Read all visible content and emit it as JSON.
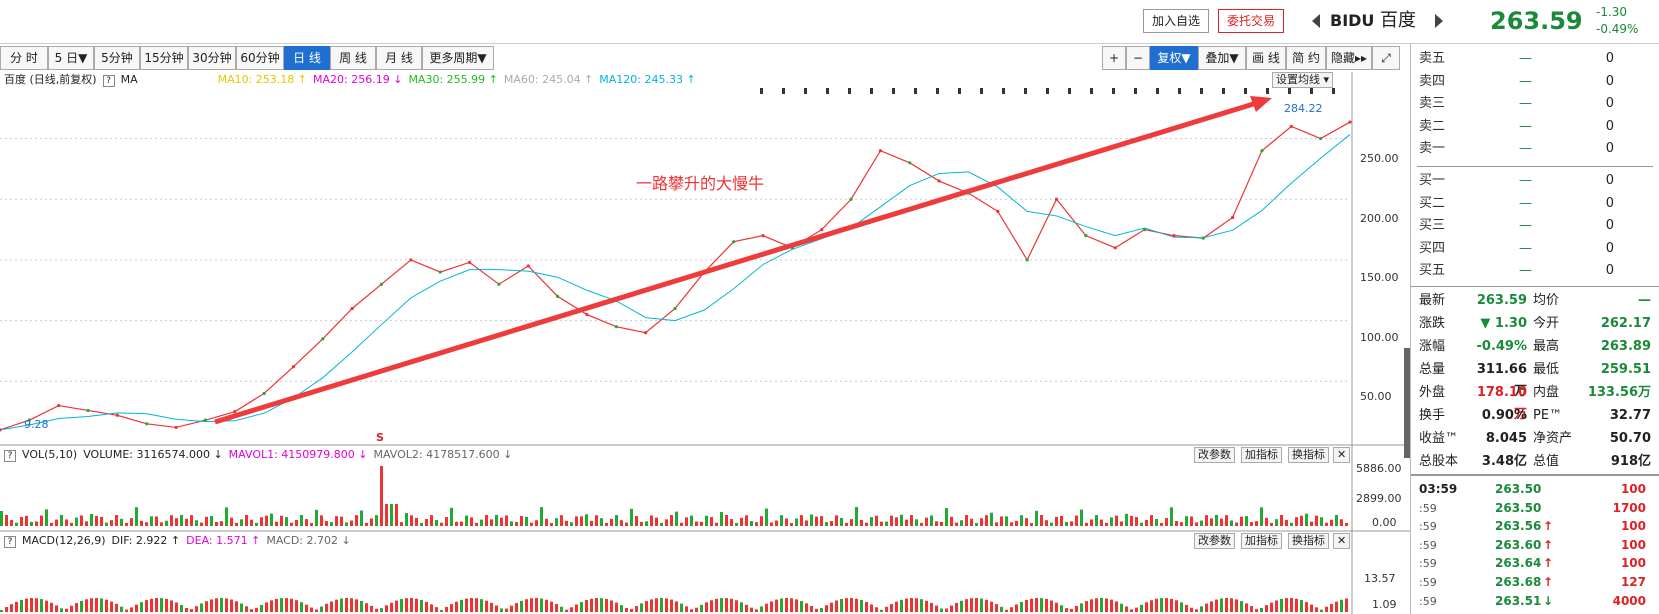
{
  "header": {
    "add_watch": "加入自选",
    "trade": "委托交易",
    "symbol": "BIDU",
    "name": "百度",
    "price": "263.59",
    "change": "-1.30",
    "change_pct": "-0.49%"
  },
  "period_tabs": [
    "分 时",
    "5 日▼",
    "5分钟",
    "15分钟",
    "30分钟",
    "60分钟",
    "日 线",
    "周 线",
    "月 线",
    "更多周期▼"
  ],
  "active_tab": "日 线",
  "tools": {
    "plus": "+",
    "minus": "−",
    "adjust": "复权▼",
    "overlay": "叠加▼",
    "draw": "画 线",
    "brief": "简 约",
    "hide": "隐藏▸▸",
    "expand": "⤢"
  },
  "main_chart": {
    "title": "百度 (日线,前复权)",
    "help": "?",
    "ma_label": "MA",
    "ma": [
      {
        "label": "MA10: 253.18 ↑",
        "color": "#e6c800"
      },
      {
        "label": "MA20: 256.19 ↓",
        "color": "#e000e0"
      },
      {
        "label": "MA30: 255.99 ↑",
        "color": "#22bb22"
      },
      {
        "label": "MA60: 245.04 ↑",
        "color": "#aaaaaa"
      },
      {
        "label": "MA120: 245.33 ↑",
        "color": "#00b5d8"
      }
    ],
    "settings_button": "设置均线 ▾",
    "max_label": "284.22",
    "min_label": "9.28",
    "annotation": "一路攀升的大慢牛",
    "s_marker": "S",
    "y_ticks": [
      "250.00",
      "200.00",
      "150.00",
      "100.00",
      "50.00"
    ]
  },
  "volume_panel": {
    "help": "?",
    "legend": [
      {
        "label": "VOL(5,10)",
        "color": "#222222"
      },
      {
        "label": "VOLUME: 3116574.000 ↓",
        "color": "#222222"
      },
      {
        "label": "MAVOL1: 4150979.800 ↓",
        "color": "#e000e0"
      },
      {
        "label": "MAVOL2: 4178517.600 ↓",
        "color": "#666666"
      }
    ],
    "y_ticks": [
      "5886.00",
      "2899.00",
      "0.00"
    ]
  },
  "macd_panel": {
    "help": "?",
    "legend": [
      {
        "label": "MACD(12,26,9)",
        "color": "#222222"
      },
      {
        "label": "DIF: 2.922 ↑",
        "color": "#222222"
      },
      {
        "label": "DEA: 1.571 ↑",
        "color": "#e000e0"
      },
      {
        "label": "MACD: 2.702 ↓",
        "color": "#666666"
      }
    ],
    "y_ticks": [
      "13.57",
      "1.09"
    ]
  },
  "panel_buttons": {
    "params": "改参数",
    "add": "加指标",
    "switch": "换指标",
    "close": "✕"
  },
  "order_book": {
    "asks": [
      {
        "label": "卖五",
        "price": "—",
        "vol": "0"
      },
      {
        "label": "卖四",
        "price": "—",
        "vol": "0"
      },
      {
        "label": "卖三",
        "price": "—",
        "vol": "0"
      },
      {
        "label": "卖二",
        "price": "—",
        "vol": "0"
      },
      {
        "label": "卖一",
        "price": "—",
        "vol": "0"
      }
    ],
    "bids": [
      {
        "label": "买一",
        "price": "—",
        "vol": "0"
      },
      {
        "label": "买二",
        "price": "—",
        "vol": "0"
      },
      {
        "label": "买三",
        "price": "—",
        "vol": "0"
      },
      {
        "label": "买四",
        "price": "—",
        "vol": "0"
      },
      {
        "label": "买五",
        "price": "—",
        "vol": "0"
      }
    ]
  },
  "quote_stats": [
    {
      "l1": "最新",
      "v1": "263.59",
      "c1": "green",
      "l2": "均价",
      "v2": "—",
      "c2": "green"
    },
    {
      "l1": "涨跌",
      "v1": "▼ 1.30",
      "c1": "green",
      "l2": "今开",
      "v2": "262.17",
      "c2": "green"
    },
    {
      "l1": "涨幅",
      "v1": "-0.49%",
      "c1": "green",
      "l2": "最高",
      "v2": "263.89",
      "c2": "green"
    },
    {
      "l1": "总量",
      "v1": "311.66万",
      "c1": "black",
      "l2": "最低",
      "v2": "259.51",
      "c2": "green"
    },
    {
      "l1": "外盘",
      "v1": "178.10万",
      "c1": "red",
      "l2": "内盘",
      "v2": "133.56万",
      "c2": "green"
    },
    {
      "l1": "换手",
      "v1": "0.90%",
      "c1": "black",
      "l2": "PE™",
      "v2": "32.77",
      "c2": "black"
    },
    {
      "l1": "收益™",
      "v1": "8.045",
      "c1": "black",
      "l2": "净资产",
      "v2": "50.70",
      "c2": "black"
    },
    {
      "l1": "总股本",
      "v1": "3.48亿",
      "c1": "black",
      "l2": "总值",
      "v2": "918亿",
      "c2": "black"
    }
  ],
  "ticks": [
    {
      "time": "03:59",
      "price": "263.50",
      "arrow": "",
      "vol": "100"
    },
    {
      "time": ":59",
      "price": "263.50",
      "arrow": "",
      "vol": "1700"
    },
    {
      "time": ":59",
      "price": "263.56",
      "arrow": "↑",
      "vol": "100"
    },
    {
      "time": ":59",
      "price": "263.60",
      "arrow": "↑",
      "vol": "100"
    },
    {
      "time": ":59",
      "price": "263.64",
      "arrow": "↑",
      "vol": "100"
    },
    {
      "time": ":59",
      "price": "263.68",
      "arrow": "↑",
      "vol": "127"
    },
    {
      "time": ":59",
      "price": "263.51",
      "arrow": "↓",
      "vol": "4000"
    }
  ],
  "chart_data": {
    "type": "line",
    "series": [
      {
        "name": "close",
        "values": [
          10,
          18,
          30,
          26,
          22,
          15,
          12,
          18,
          25,
          40,
          62,
          85,
          110,
          130,
          150,
          140,
          148,
          130,
          145,
          120,
          105,
          95,
          90,
          110,
          140,
          165,
          170,
          160,
          175,
          200,
          240,
          230,
          215,
          205,
          190,
          150,
          200,
          170,
          160,
          175,
          170,
          168,
          185,
          240,
          260,
          250,
          263.59
        ]
      }
    ],
    "ylim": [
      0,
      290
    ]
  }
}
